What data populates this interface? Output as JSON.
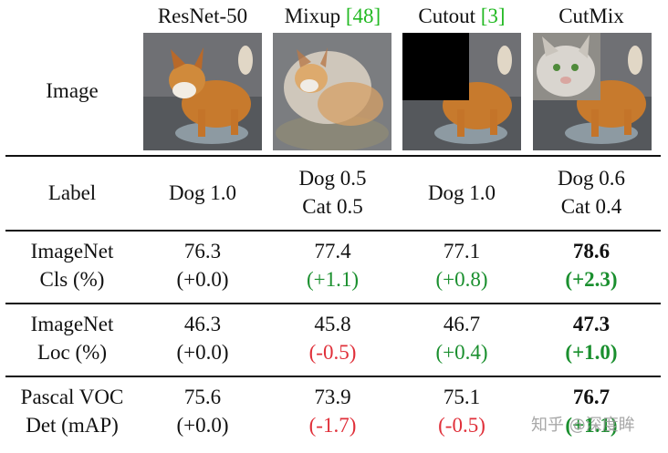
{
  "header": {
    "row_label": "Image",
    "columns": [
      {
        "name": "ResNet-50",
        "ref": ""
      },
      {
        "name": "Mixup ",
        "ref": "[48]"
      },
      {
        "name": "Cutout ",
        "ref": "[3]"
      },
      {
        "name": "CutMix",
        "ref": ""
      }
    ]
  },
  "rows": [
    {
      "label": [
        "Label",
        ""
      ],
      "cells": [
        [
          "Dog 1.0",
          ""
        ],
        [
          "Dog 0.5",
          "Cat 0.5"
        ],
        [
          "Dog 1.0",
          ""
        ],
        [
          "Dog 0.6",
          "Cat 0.4"
        ]
      ]
    },
    {
      "label": [
        "ImageNet",
        "Cls (%)"
      ],
      "cells": [
        [
          "76.3",
          "(+0.0)"
        ],
        [
          "77.4",
          "(+1.1)"
        ],
        [
          "77.1",
          "(+0.8)"
        ],
        [
          "78.6",
          "(+2.3)"
        ]
      ]
    },
    {
      "label": [
        "ImageNet",
        "Loc (%)"
      ],
      "cells": [
        [
          "46.3",
          "(+0.0)"
        ],
        [
          "45.8",
          "(-0.5)"
        ],
        [
          "46.7",
          "(+0.4)"
        ],
        [
          "47.3",
          "(+1.0)"
        ]
      ]
    },
    {
      "label": [
        "Pascal VOC",
        "Det (mAP)"
      ],
      "cells": [
        [
          "75.6",
          "(+0.0)"
        ],
        [
          "73.9",
          "(-1.7)"
        ],
        [
          "75.1",
          "(-0.5)"
        ],
        [
          "76.7",
          "(+1.1)"
        ]
      ]
    }
  ],
  "colors": {
    "increase": "#1a8f2e",
    "decrease": "#e0303a",
    "citation": "#22b922"
  },
  "watermark": "知乎 @深度眸"
}
